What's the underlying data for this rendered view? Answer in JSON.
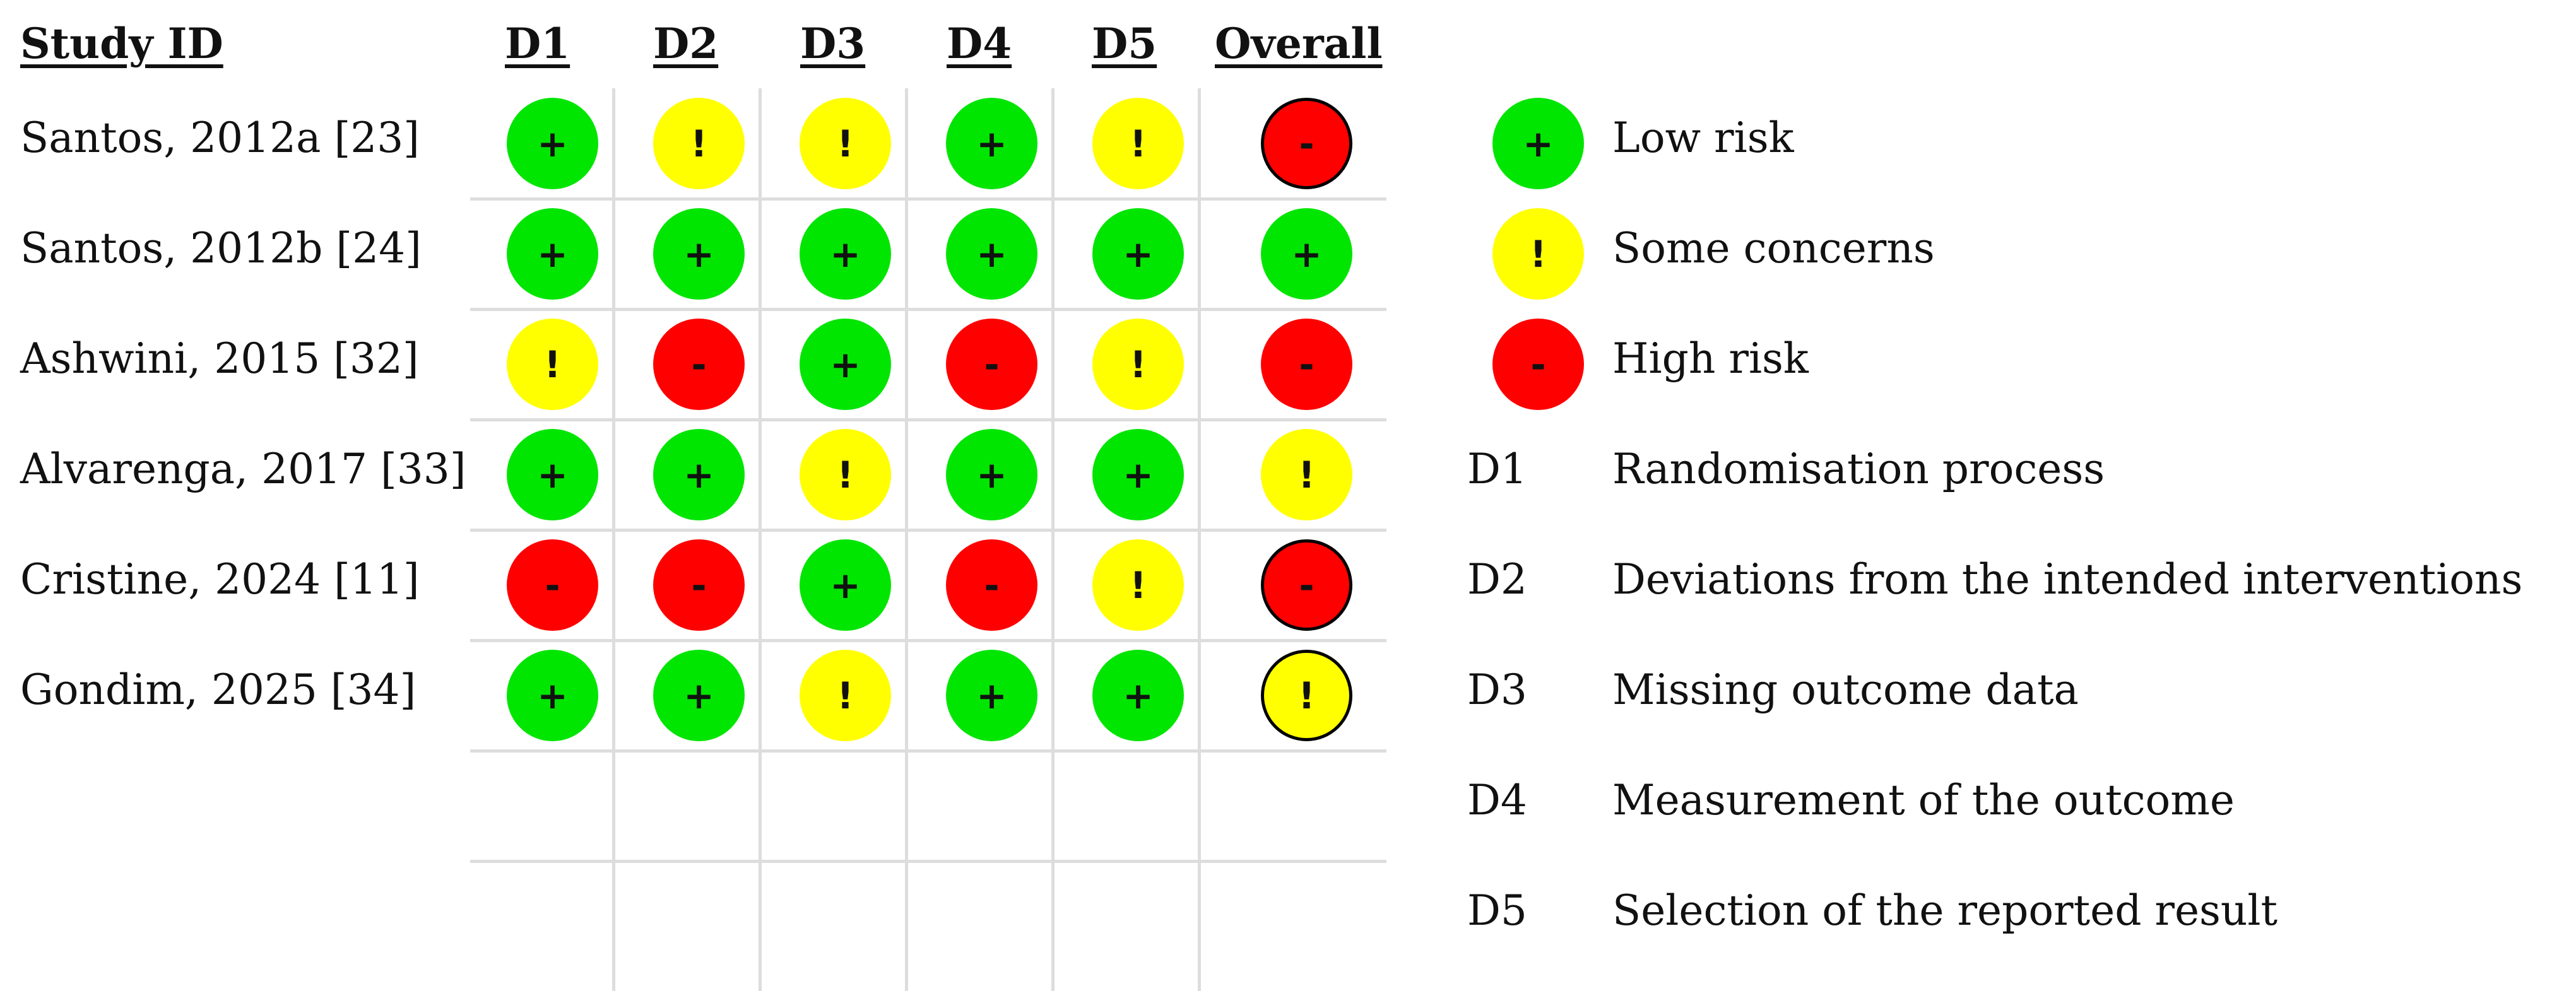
{
  "headers": {
    "study_id": "Study ID",
    "domains": [
      "D1",
      "D2",
      "D3",
      "D4",
      "D5"
    ],
    "overall": "Overall"
  },
  "studies": [
    {
      "name": "Santos, 2012a [23]",
      "judgements": [
        "+",
        "!",
        "!",
        "+",
        "!"
      ],
      "overall": "-"
    },
    {
      "name": "Santos, 2012b [24]",
      "judgements": [
        "+",
        "+",
        "+",
        "+",
        "+"
      ],
      "overall": "+"
    },
    {
      "name": "Ashwini, 2015 [32]",
      "judgements": [
        "!",
        "-",
        "+",
        "-",
        "!"
      ],
      "overall": "-"
    },
    {
      "name": "Alvarenga, 2017 [33]",
      "judgements": [
        "+",
        "+",
        "!",
        "+",
        "+"
      ],
      "overall": "!"
    },
    {
      "name": "Cristine, 2024 [11]",
      "judgements": [
        "-",
        "-",
        "+",
        "-",
        "!"
      ],
      "overall": "-"
    },
    {
      "name": "Gondim, 2025 [34]",
      "judgements": [
        "+",
        "+",
        "!",
        "+",
        "+"
      ],
      "overall": "!"
    }
  ],
  "legend": {
    "judgements": [
      {
        "symbol": "+",
        "label": "Low risk",
        "color": "#00e600"
      },
      {
        "symbol": "!",
        "label": "Some concerns",
        "color": "#ffff00"
      },
      {
        "symbol": "-",
        "label": "High risk",
        "color": "#ff0000"
      }
    ],
    "domains": [
      {
        "code": "D1",
        "label": "Randomisation process"
      },
      {
        "code": "D2",
        "label": "Deviations from the intended interventions"
      },
      {
        "code": "D3",
        "label": "Missing outcome data"
      },
      {
        "code": "D4",
        "label": "Measurement of the outcome"
      },
      {
        "code": "D5",
        "label": "Selection of the reported result"
      }
    ]
  }
}
